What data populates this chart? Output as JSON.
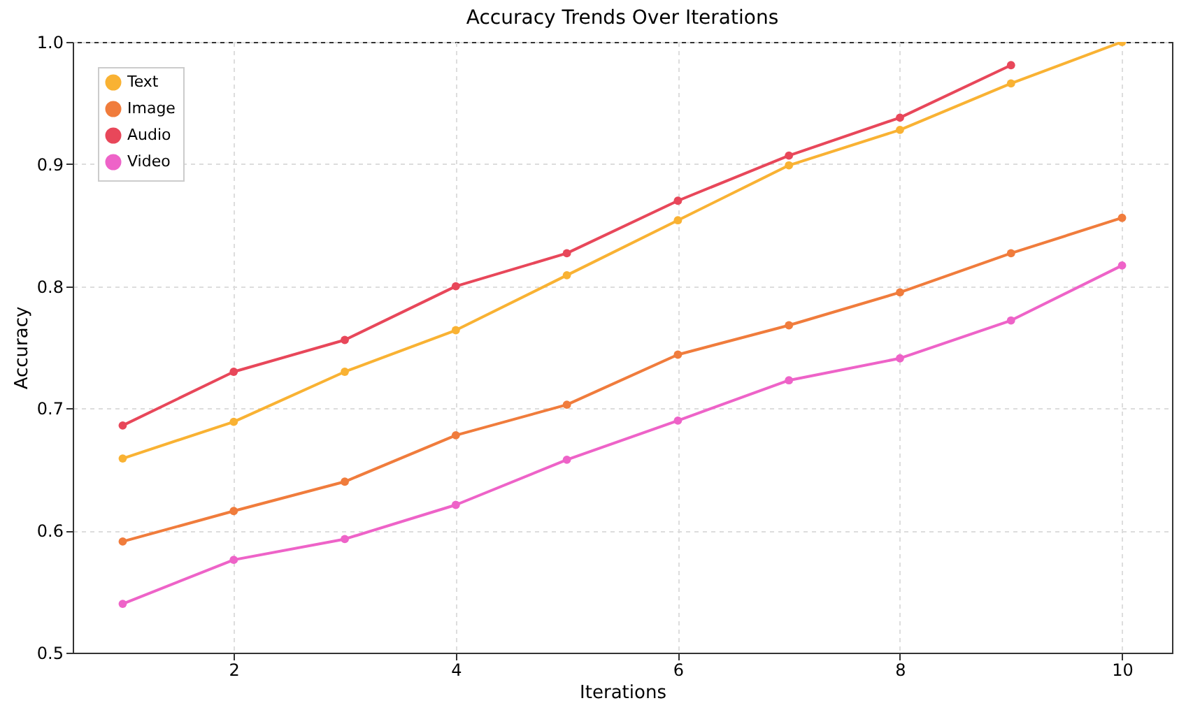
{
  "chart_data": {
    "type": "line",
    "title": "Accuracy Trends Over Iterations",
    "xlabel": "Iterations",
    "ylabel": "Accuracy",
    "x": [
      1,
      2,
      3,
      4,
      5,
      6,
      7,
      8,
      9,
      10
    ],
    "series": [
      {
        "name": "Text",
        "color": "#f9b233",
        "values": [
          0.659,
          0.689,
          0.73,
          0.764,
          0.809,
          0.854,
          0.899,
          0.928,
          0.966,
          1.0
        ]
      },
      {
        "name": "Image",
        "color": "#f07c3c",
        "values": [
          0.591,
          0.616,
          0.64,
          0.678,
          0.703,
          0.744,
          0.768,
          0.795,
          0.827,
          0.856
        ]
      },
      {
        "name": "Audio",
        "color": "#e8475a",
        "values": [
          0.686,
          0.73,
          0.756,
          0.8,
          0.827,
          0.87,
          0.907,
          0.938,
          0.981,
          null
        ]
      },
      {
        "name": "Video",
        "color": "#ee63c8",
        "values": [
          0.54,
          0.576,
          0.593,
          0.621,
          0.658,
          0.69,
          0.723,
          0.741,
          0.772,
          0.817
        ]
      }
    ],
    "xlim": [
      0.55,
      10.45
    ],
    "xticks": [
      2,
      4,
      6,
      8,
      10
    ],
    "ylim": [
      0.5,
      1.0
    ],
    "yticks": [
      0.5,
      0.6,
      0.7,
      0.8,
      0.9,
      {
        "value": 1.0,
        "label": "1.0"
      }
    ],
    "grid": true,
    "legend": "top left",
    "marker": "circle",
    "line_style": "solid"
  }
}
